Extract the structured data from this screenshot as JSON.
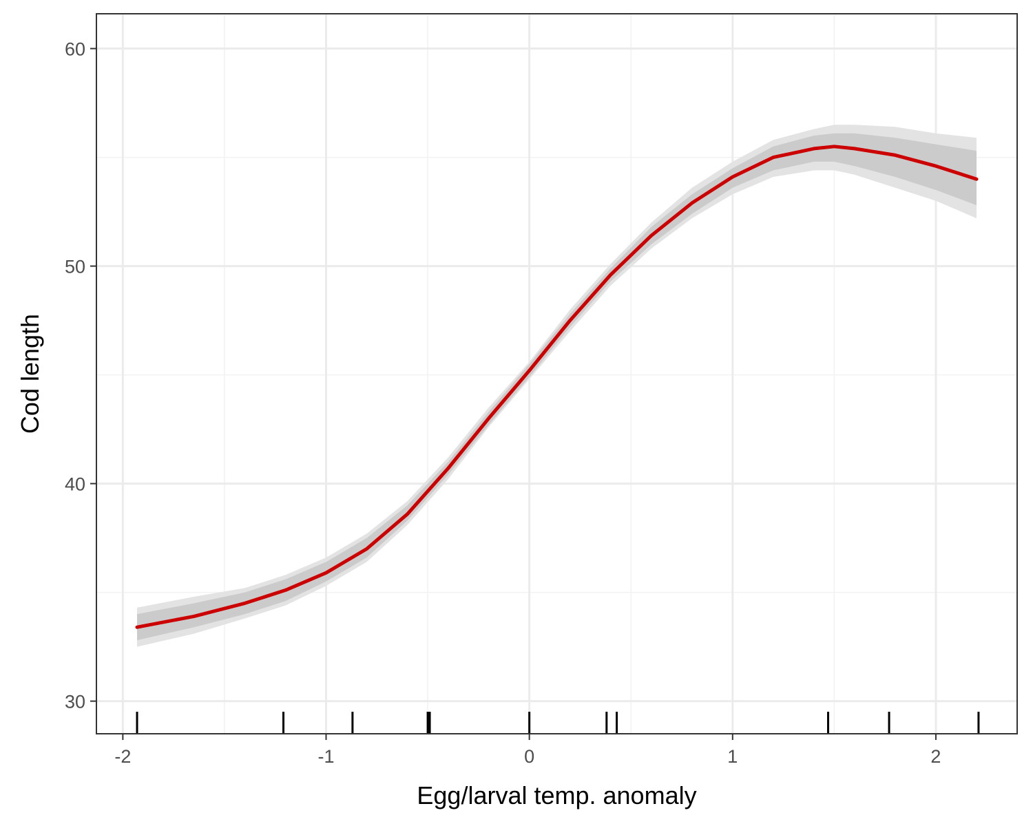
{
  "chart_data": {
    "type": "line",
    "xlabel": "Egg/larval temp. anomaly",
    "ylabel": "Cod length",
    "xlim": [
      -2.13,
      2.4
    ],
    "ylim": [
      28.5,
      61.6
    ],
    "xticks": [
      -2,
      -1,
      0,
      1,
      2
    ],
    "xtick_labels": [
      "-2",
      "-1",
      "0",
      "1",
      "2"
    ],
    "yticks": [
      30,
      40,
      50,
      60
    ],
    "ytick_labels": [
      "30",
      "40",
      "50",
      "60"
    ],
    "x_minor_grid": [
      -1.5,
      -0.5,
      0.5,
      1.5
    ],
    "y_minor_grid": [
      35,
      45,
      55
    ],
    "grid": true,
    "legend": "none",
    "series": [
      {
        "x": [
          -1.93,
          -1.65,
          -1.4,
          -1.2,
          -1.0,
          -0.8,
          -0.6,
          -0.4,
          -0.2,
          0.0,
          0.2,
          0.4,
          0.6,
          0.8,
          1.0,
          1.2,
          1.4,
          1.5,
          1.6,
          1.8,
          2.0,
          2.2
        ],
        "y": [
          33.4,
          33.9,
          34.5,
          35.1,
          35.9,
          37.0,
          38.6,
          40.7,
          43.0,
          45.2,
          47.5,
          49.6,
          51.4,
          52.9,
          54.1,
          55.0,
          55.4,
          55.5,
          55.4,
          55.1,
          54.6,
          54.0
        ]
      }
    ],
    "ribbons": [
      {
        "x": [
          -1.93,
          -1.65,
          -1.4,
          -1.2,
          -1.0,
          -0.8,
          -0.6,
          -0.4,
          -0.2,
          0.0,
          0.2,
          0.4,
          0.6,
          0.8,
          1.0,
          1.2,
          1.4,
          1.5,
          1.6,
          1.8,
          2.0,
          2.2
        ],
        "lower": [
          32.5,
          33.1,
          33.8,
          34.4,
          35.3,
          36.4,
          38.1,
          40.2,
          42.6,
          44.8,
          47.0,
          49.1,
          50.8,
          52.2,
          53.3,
          54.1,
          54.4,
          54.4,
          54.2,
          53.6,
          53.0,
          52.2
        ],
        "upper": [
          34.3,
          34.8,
          35.2,
          35.8,
          36.6,
          37.7,
          39.2,
          41.2,
          43.5,
          45.6,
          48.0,
          50.1,
          52.0,
          53.6,
          54.8,
          55.8,
          56.3,
          56.5,
          56.5,
          56.4,
          56.1,
          55.9
        ]
      },
      {
        "x": [
          -1.93,
          -1.65,
          -1.4,
          -1.2,
          -1.0,
          -0.8,
          -0.6,
          -0.4,
          -0.2,
          0.0,
          0.2,
          0.4,
          0.6,
          0.8,
          1.0,
          1.2,
          1.4,
          1.5,
          1.6,
          1.8,
          2.0,
          2.2
        ],
        "lower": [
          32.8,
          33.4,
          34.0,
          34.6,
          35.5,
          36.6,
          38.3,
          40.4,
          42.7,
          44.9,
          47.2,
          49.3,
          51.0,
          52.4,
          53.6,
          54.4,
          54.8,
          54.8,
          54.6,
          54.1,
          53.5,
          52.8
        ],
        "upper": [
          34.0,
          34.5,
          35.0,
          35.6,
          36.4,
          37.5,
          39.0,
          41.0,
          43.3,
          45.5,
          47.8,
          49.9,
          51.8,
          53.3,
          54.5,
          55.5,
          56.0,
          56.1,
          56.1,
          55.9,
          55.6,
          55.3
        ]
      }
    ],
    "rug_x": [
      -1.93,
      -1.21,
      -0.87,
      -0.5,
      -0.49,
      0.0,
      0.38,
      0.43,
      1.47,
      1.77,
      2.21
    ],
    "colors": {
      "line": "#cc0000",
      "ribbon_outer": "#e3e3e3",
      "ribbon_inner": "#cbcbcb",
      "grid_major": "#ebebeb",
      "grid_minor": "#f2f2f2",
      "panel_border": "#333333",
      "rug": "#000000"
    }
  }
}
